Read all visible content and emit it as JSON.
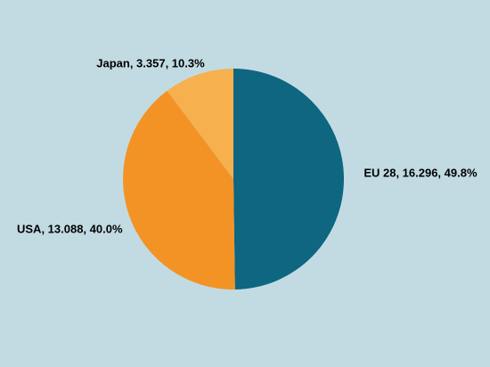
{
  "chart_data": {
    "type": "pie",
    "categories": [
      "EU 28",
      "USA",
      "Japan"
    ],
    "values": [
      16.296,
      13.088,
      3.357
    ],
    "value_labels": [
      "EU 28, 16.296, 49.8%",
      "USA, 13.088, 40.0%",
      "Japan, 3.357, 10.3%"
    ],
    "colors": [
      "#0e6680",
      "#f39325",
      "#f6b04e"
    ]
  }
}
